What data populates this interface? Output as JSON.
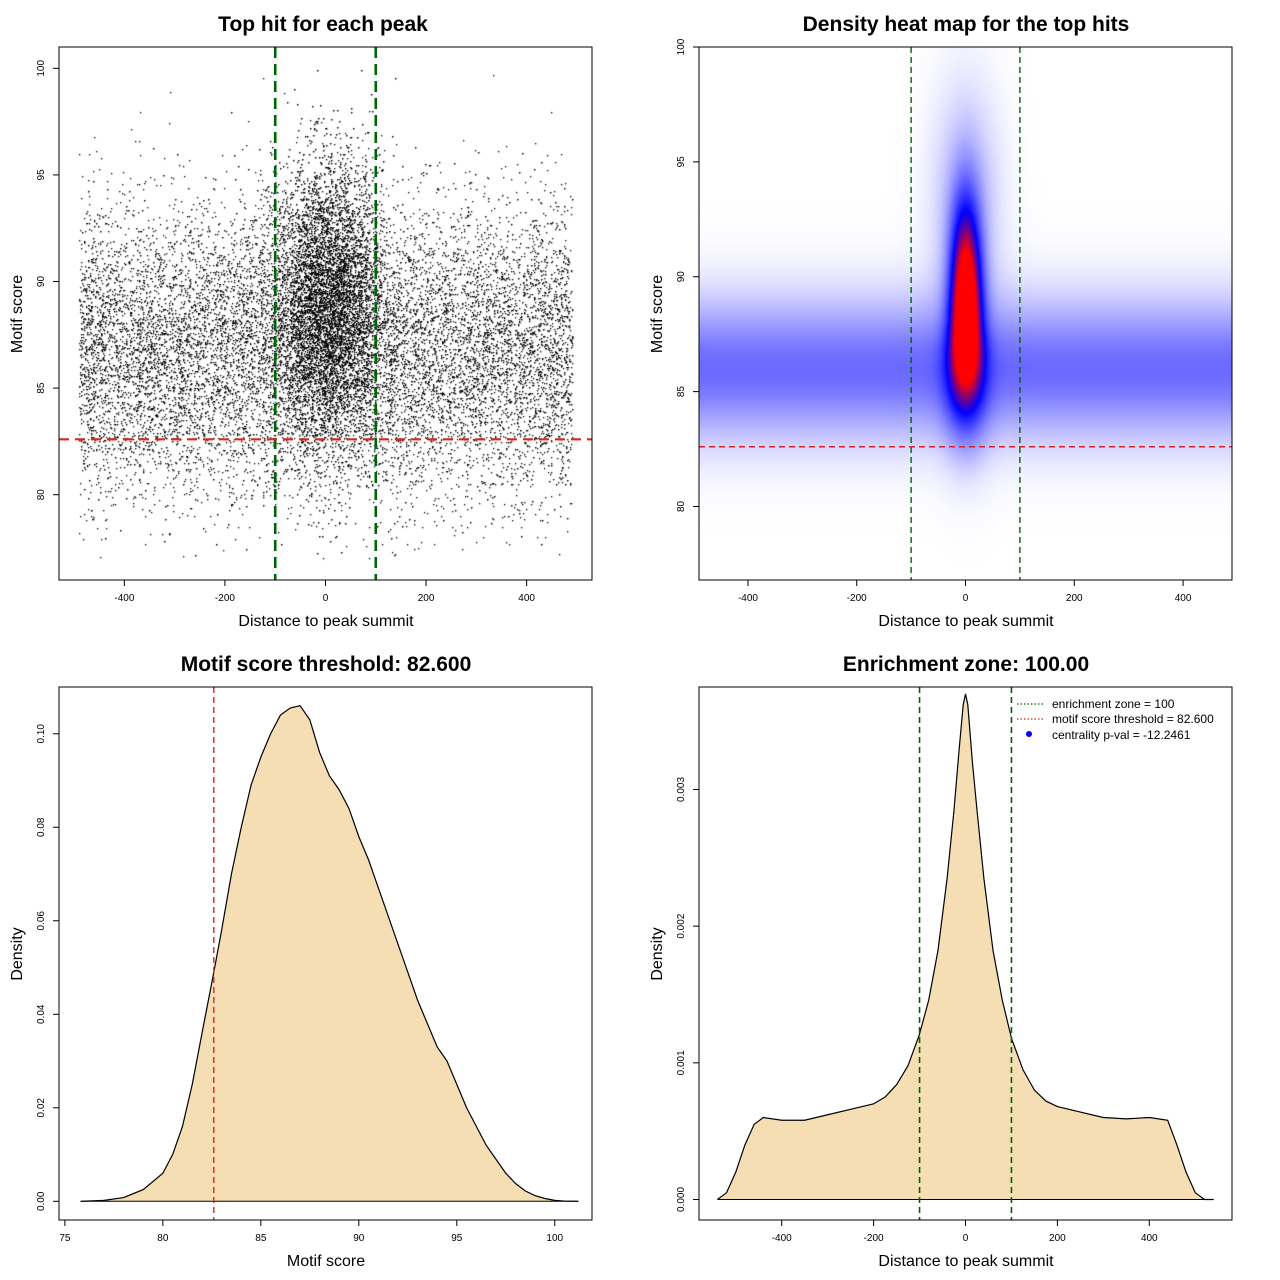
{
  "chart_data": [
    {
      "type": "scatter",
      "title": "Top hit for each peak",
      "xlabel": "Distance to peak summit",
      "ylabel": "Motif score",
      "xlim": [
        -530,
        530
      ],
      "ylim": [
        76,
        101
      ],
      "xticks": [
        -400,
        -200,
        0,
        200,
        400
      ],
      "yticks": [
        80,
        85,
        90,
        95,
        100
      ],
      "x_range_points": [
        -490,
        490
      ],
      "y_range_points": [
        77,
        100
      ],
      "vlines": [
        -100,
        100
      ],
      "hline": 82.6,
      "colors": {
        "points": "#000000",
        "vlines": "#006400",
        "hline": "#dd2222"
      }
    },
    {
      "type": "heatmap",
      "title": "Density heat map for the top hits",
      "xlabel": "Distance to peak summit",
      "ylabel": "Motif score",
      "xlim": [
        -490,
        490
      ],
      "ylim": [
        76.8,
        100
      ],
      "xticks": [
        -400,
        -200,
        0,
        200,
        400
      ],
      "yticks": [
        80,
        85,
        90,
        95,
        100
      ],
      "vlines": [
        -100,
        100
      ],
      "hline": 82.6,
      "colors": {
        "low": "#ffffff",
        "mid": "#0000ff",
        "high": "#ff0000",
        "vlines": "#006400",
        "hline": "#dd2222"
      }
    },
    {
      "type": "area",
      "title": "Motif score threshold: 82.600",
      "xlabel": "Motif score",
      "ylabel": "Density",
      "xlim": [
        74.7,
        101.9
      ],
      "ylim": [
        -0.004,
        0.11
      ],
      "xticks": [
        75,
        80,
        85,
        90,
        95,
        100
      ],
      "yticks": [
        "0.00",
        "0.02",
        "0.04",
        "0.06",
        "0.08",
        "0.10"
      ],
      "x": [
        75.8,
        77,
        78,
        79,
        80,
        80.5,
        81,
        81.5,
        82,
        82.6,
        83,
        83.5,
        84,
        84.5,
        85,
        85.5,
        86,
        86.5,
        87,
        87.5,
        88,
        88.5,
        89,
        89.5,
        90,
        90.5,
        91,
        91.5,
        92,
        92.5,
        93,
        93.5,
        94,
        94.5,
        95,
        95.5,
        96,
        96.5,
        97,
        97.5,
        98,
        98.5,
        99,
        99.5,
        100,
        100.5,
        101.2
      ],
      "y": [
        0,
        0.0002,
        0.0008,
        0.0025,
        0.006,
        0.01,
        0.016,
        0.025,
        0.036,
        0.049,
        0.058,
        0.07,
        0.08,
        0.089,
        0.095,
        0.1,
        0.104,
        0.1055,
        0.106,
        0.103,
        0.096,
        0.091,
        0.088,
        0.084,
        0.078,
        0.073,
        0.067,
        0.061,
        0.055,
        0.049,
        0.043,
        0.038,
        0.033,
        0.03,
        0.025,
        0.02,
        0.016,
        0.012,
        0.009,
        0.006,
        0.0038,
        0.0022,
        0.0012,
        0.0006,
        0.0002,
        5e-05,
        0
      ],
      "vline": 82.6,
      "colors": {
        "fill": "#f5deb3",
        "line": "#000000",
        "vline": "#dd2222"
      }
    },
    {
      "type": "area",
      "title": "Enrichment zone: 100.00",
      "xlabel": "Distance to peak summit",
      "ylabel": "Density",
      "xlim": [
        -580,
        580
      ],
      "ylim": [
        -0.00015,
        0.00375
      ],
      "xticks": [
        -400,
        -200,
        0,
        200,
        400
      ],
      "yticks": [
        "0.000",
        "0.001",
        "0.002",
        "0.003"
      ],
      "x": [
        -540,
        -520,
        -500,
        -480,
        -460,
        -440,
        -400,
        -350,
        -300,
        -250,
        -200,
        -175,
        -150,
        -125,
        -100,
        -80,
        -60,
        -40,
        -25,
        -15,
        -5,
        0,
        5,
        15,
        25,
        40,
        60,
        80,
        100,
        125,
        150,
        175,
        200,
        250,
        300,
        350,
        400,
        440,
        460,
        480,
        500,
        520,
        540
      ],
      "y": [
        0,
        5e-05,
        0.0002,
        0.0004,
        0.00055,
        0.0006,
        0.00058,
        0.00058,
        0.00062,
        0.00066,
        0.0007,
        0.00075,
        0.00084,
        0.00098,
        0.00121,
        0.00146,
        0.00182,
        0.00235,
        0.00285,
        0.00325,
        0.00362,
        0.0037,
        0.00362,
        0.0032,
        0.00285,
        0.00235,
        0.00182,
        0.00146,
        0.00118,
        0.00095,
        0.0008,
        0.00072,
        0.00068,
        0.00064,
        0.0006,
        0.00059,
        0.0006,
        0.00058,
        0.0004,
        0.0002,
        5e-05,
        0,
        0
      ],
      "vlines": [
        -100,
        100
      ],
      "colors": {
        "fill": "#f5deb3",
        "line": "#000000",
        "vlines": "#006400"
      },
      "legend": {
        "position": "top-right",
        "entries": [
          {
            "label": "enrichment zone = 100",
            "color": "#006400",
            "style": "dotted-line"
          },
          {
            "label": "motif score threshold = 82.600",
            "color": "#dd2222",
            "style": "dotted-line"
          },
          {
            "label": "centrality p-val = -12.2461",
            "color": "#0000ff",
            "style": "point"
          }
        ]
      }
    }
  ]
}
